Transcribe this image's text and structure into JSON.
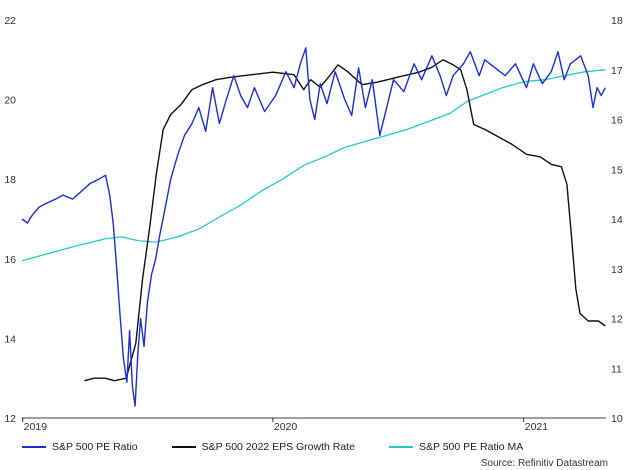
{
  "chart_data": {
    "type": "line",
    "x_ticks": [
      "2019",
      "2020",
      "2021"
    ],
    "y_left": {
      "ticks": [
        12,
        14,
        16,
        18,
        20,
        22
      ],
      "range": [
        12,
        22
      ]
    },
    "y_right": {
      "ticks": [
        10,
        11,
        12,
        13,
        14,
        15,
        16,
        17,
        18
      ],
      "range": [
        10,
        18
      ]
    },
    "grid": false,
    "legend_position": "bottom-left",
    "source": "Source: Refinitiv Datastream",
    "series": [
      {
        "name": "S&P 500 PE Ratio",
        "axis": "left",
        "color": "#1a2fd8",
        "points": [
          [
            "2018-12-31",
            17.0
          ],
          [
            "2019-01-08",
            16.9
          ],
          [
            "2019-01-15",
            17.1
          ],
          [
            "2019-01-25",
            17.3
          ],
          [
            "2019-02-05",
            17.4
          ],
          [
            "2019-02-18",
            17.5
          ],
          [
            "2019-03-01",
            17.6
          ],
          [
            "2019-03-15",
            17.5
          ],
          [
            "2019-03-28",
            17.7
          ],
          [
            "2019-04-10",
            17.9
          ],
          [
            "2019-04-22",
            18.0
          ],
          [
            "2019-05-02",
            18.1
          ],
          [
            "2019-05-08",
            17.6
          ],
          [
            "2019-05-13",
            16.9
          ],
          [
            "2019-05-18",
            15.8
          ],
          [
            "2019-05-23",
            14.6
          ],
          [
            "2019-05-28",
            13.5
          ],
          [
            "2019-06-02",
            12.9
          ],
          [
            "2019-06-06",
            14.2
          ],
          [
            "2019-06-10",
            12.8
          ],
          [
            "2019-06-14",
            12.3
          ],
          [
            "2019-06-18",
            13.6
          ],
          [
            "2019-06-22",
            14.5
          ],
          [
            "2019-06-27",
            13.8
          ],
          [
            "2019-07-02",
            14.9
          ],
          [
            "2019-07-08",
            15.6
          ],
          [
            "2019-07-14",
            16.0
          ],
          [
            "2019-07-20",
            16.6
          ],
          [
            "2019-07-27",
            17.2
          ],
          [
            "2019-08-05",
            18.0
          ],
          [
            "2019-08-15",
            18.6
          ],
          [
            "2019-08-25",
            19.1
          ],
          [
            "2019-09-05",
            19.4
          ],
          [
            "2019-09-15",
            19.8
          ],
          [
            "2019-09-25",
            19.2
          ],
          [
            "2019-10-05",
            20.3
          ],
          [
            "2019-10-15",
            19.4
          ],
          [
            "2019-10-25",
            20.0
          ],
          [
            "2019-11-05",
            20.6
          ],
          [
            "2019-11-15",
            20.1
          ],
          [
            "2019-11-25",
            19.8
          ],
          [
            "2019-12-05",
            20.3
          ],
          [
            "2019-12-20",
            19.7
          ],
          [
            "2020-01-05",
            20.1
          ],
          [
            "2020-01-20",
            20.7
          ],
          [
            "2020-02-01",
            20.3
          ],
          [
            "2020-02-10",
            20.9
          ],
          [
            "2020-02-18",
            21.3
          ],
          [
            "2020-02-24",
            20.0
          ],
          [
            "2020-03-02",
            19.5
          ],
          [
            "2020-03-10",
            20.4
          ],
          [
            "2020-03-20",
            19.9
          ],
          [
            "2020-04-01",
            20.7
          ],
          [
            "2020-04-15",
            20.0
          ],
          [
            "2020-04-25",
            19.6
          ],
          [
            "2020-05-05",
            20.8
          ],
          [
            "2020-05-15",
            19.8
          ],
          [
            "2020-05-25",
            20.5
          ],
          [
            "2020-06-05",
            19.1
          ],
          [
            "2020-06-15",
            19.8
          ],
          [
            "2020-06-25",
            20.5
          ],
          [
            "2020-07-10",
            20.2
          ],
          [
            "2020-07-25",
            20.9
          ],
          [
            "2020-08-05",
            20.5
          ],
          [
            "2020-08-20",
            21.1
          ],
          [
            "2020-09-01",
            20.6
          ],
          [
            "2020-09-10",
            20.1
          ],
          [
            "2020-09-20",
            20.6
          ],
          [
            "2020-10-05",
            20.9
          ],
          [
            "2020-10-15",
            21.2
          ],
          [
            "2020-10-28",
            20.6
          ],
          [
            "2020-11-05",
            21.0
          ],
          [
            "2020-11-20",
            20.8
          ],
          [
            "2020-12-05",
            20.6
          ],
          [
            "2020-12-20",
            20.9
          ],
          [
            "2021-01-05",
            20.3
          ],
          [
            "2021-01-15",
            20.9
          ],
          [
            "2021-01-28",
            20.4
          ],
          [
            "2021-02-10",
            20.7
          ],
          [
            "2021-02-20",
            21.2
          ],
          [
            "2021-03-01",
            20.5
          ],
          [
            "2021-03-10",
            20.9
          ],
          [
            "2021-03-25",
            21.1
          ],
          [
            "2021-04-05",
            20.6
          ],
          [
            "2021-04-12",
            19.8
          ],
          [
            "2021-04-18",
            20.3
          ],
          [
            "2021-04-24",
            20.1
          ],
          [
            "2021-04-30",
            20.3
          ]
        ]
      },
      {
        "name": "S&P 500 2022 EPS Growth Rate",
        "axis": "right",
        "color": "#111111",
        "points": [
          [
            "2019-04-01",
            10.75
          ],
          [
            "2019-04-15",
            10.8
          ],
          [
            "2019-05-01",
            10.8
          ],
          [
            "2019-05-15",
            10.75
          ],
          [
            "2019-06-01",
            10.8
          ],
          [
            "2019-06-15",
            11.5
          ],
          [
            "2019-06-25",
            12.8
          ],
          [
            "2019-07-05",
            13.8
          ],
          [
            "2019-07-15",
            14.9
          ],
          [
            "2019-07-25",
            15.8
          ],
          [
            "2019-08-05",
            16.1
          ],
          [
            "2019-08-20",
            16.3
          ],
          [
            "2019-09-05",
            16.6
          ],
          [
            "2019-09-20",
            16.7
          ],
          [
            "2019-10-10",
            16.8
          ],
          [
            "2019-11-01",
            16.85
          ],
          [
            "2019-12-01",
            16.9
          ],
          [
            "2020-01-01",
            16.95
          ],
          [
            "2020-02-01",
            16.9
          ],
          [
            "2020-02-15",
            16.6
          ],
          [
            "2020-02-25",
            16.8
          ],
          [
            "2020-03-10",
            16.65
          ],
          [
            "2020-03-25",
            16.9
          ],
          [
            "2020-04-05",
            17.1
          ],
          [
            "2020-04-20",
            16.95
          ],
          [
            "2020-05-10",
            16.7
          ],
          [
            "2020-06-01",
            16.75
          ],
          [
            "2020-07-01",
            16.85
          ],
          [
            "2020-08-01",
            16.95
          ],
          [
            "2020-08-20",
            17.05
          ],
          [
            "2020-09-05",
            17.2
          ],
          [
            "2020-09-20",
            17.1
          ],
          [
            "2020-10-01",
            17.0
          ],
          [
            "2020-10-10",
            16.6
          ],
          [
            "2020-10-20",
            15.9
          ],
          [
            "2020-11-05",
            15.8
          ],
          [
            "2020-11-25",
            15.65
          ],
          [
            "2020-12-15",
            15.5
          ],
          [
            "2021-01-05",
            15.3
          ],
          [
            "2021-01-25",
            15.25
          ],
          [
            "2021-02-10",
            15.1
          ],
          [
            "2021-02-25",
            15.05
          ],
          [
            "2021-03-05",
            14.7
          ],
          [
            "2021-03-12",
            13.6
          ],
          [
            "2021-03-18",
            12.6
          ],
          [
            "2021-03-24",
            12.1
          ],
          [
            "2021-04-05",
            11.95
          ],
          [
            "2021-04-20",
            11.95
          ],
          [
            "2021-04-30",
            11.85
          ]
        ]
      },
      {
        "name": "S&P 500 PE Ratio MA",
        "axis": "left",
        "color": "#27c8c8",
        "points": [
          [
            "2018-12-31",
            15.95
          ],
          [
            "2019-02-01",
            16.1
          ],
          [
            "2019-03-15",
            16.3
          ],
          [
            "2019-05-01",
            16.5
          ],
          [
            "2019-05-25",
            16.55
          ],
          [
            "2019-06-20",
            16.45
          ],
          [
            "2019-07-15",
            16.42
          ],
          [
            "2019-08-15",
            16.55
          ],
          [
            "2019-09-15",
            16.75
          ],
          [
            "2019-10-15",
            17.05
          ],
          [
            "2019-11-15",
            17.35
          ],
          [
            "2019-12-15",
            17.7
          ],
          [
            "2020-01-15",
            18.0
          ],
          [
            "2020-02-15",
            18.35
          ],
          [
            "2020-03-15",
            18.55
          ],
          [
            "2020-04-15",
            18.8
          ],
          [
            "2020-05-15",
            18.95
          ],
          [
            "2020-06-15",
            19.1
          ],
          [
            "2020-07-15",
            19.25
          ],
          [
            "2020-08-15",
            19.45
          ],
          [
            "2020-09-15",
            19.65
          ],
          [
            "2020-10-10",
            19.95
          ],
          [
            "2020-11-01",
            20.1
          ],
          [
            "2020-12-01",
            20.3
          ],
          [
            "2021-01-01",
            20.45
          ],
          [
            "2021-02-01",
            20.5
          ],
          [
            "2021-03-01",
            20.6
          ],
          [
            "2021-04-01",
            20.7
          ],
          [
            "2021-04-30",
            20.75
          ]
        ]
      }
    ]
  }
}
